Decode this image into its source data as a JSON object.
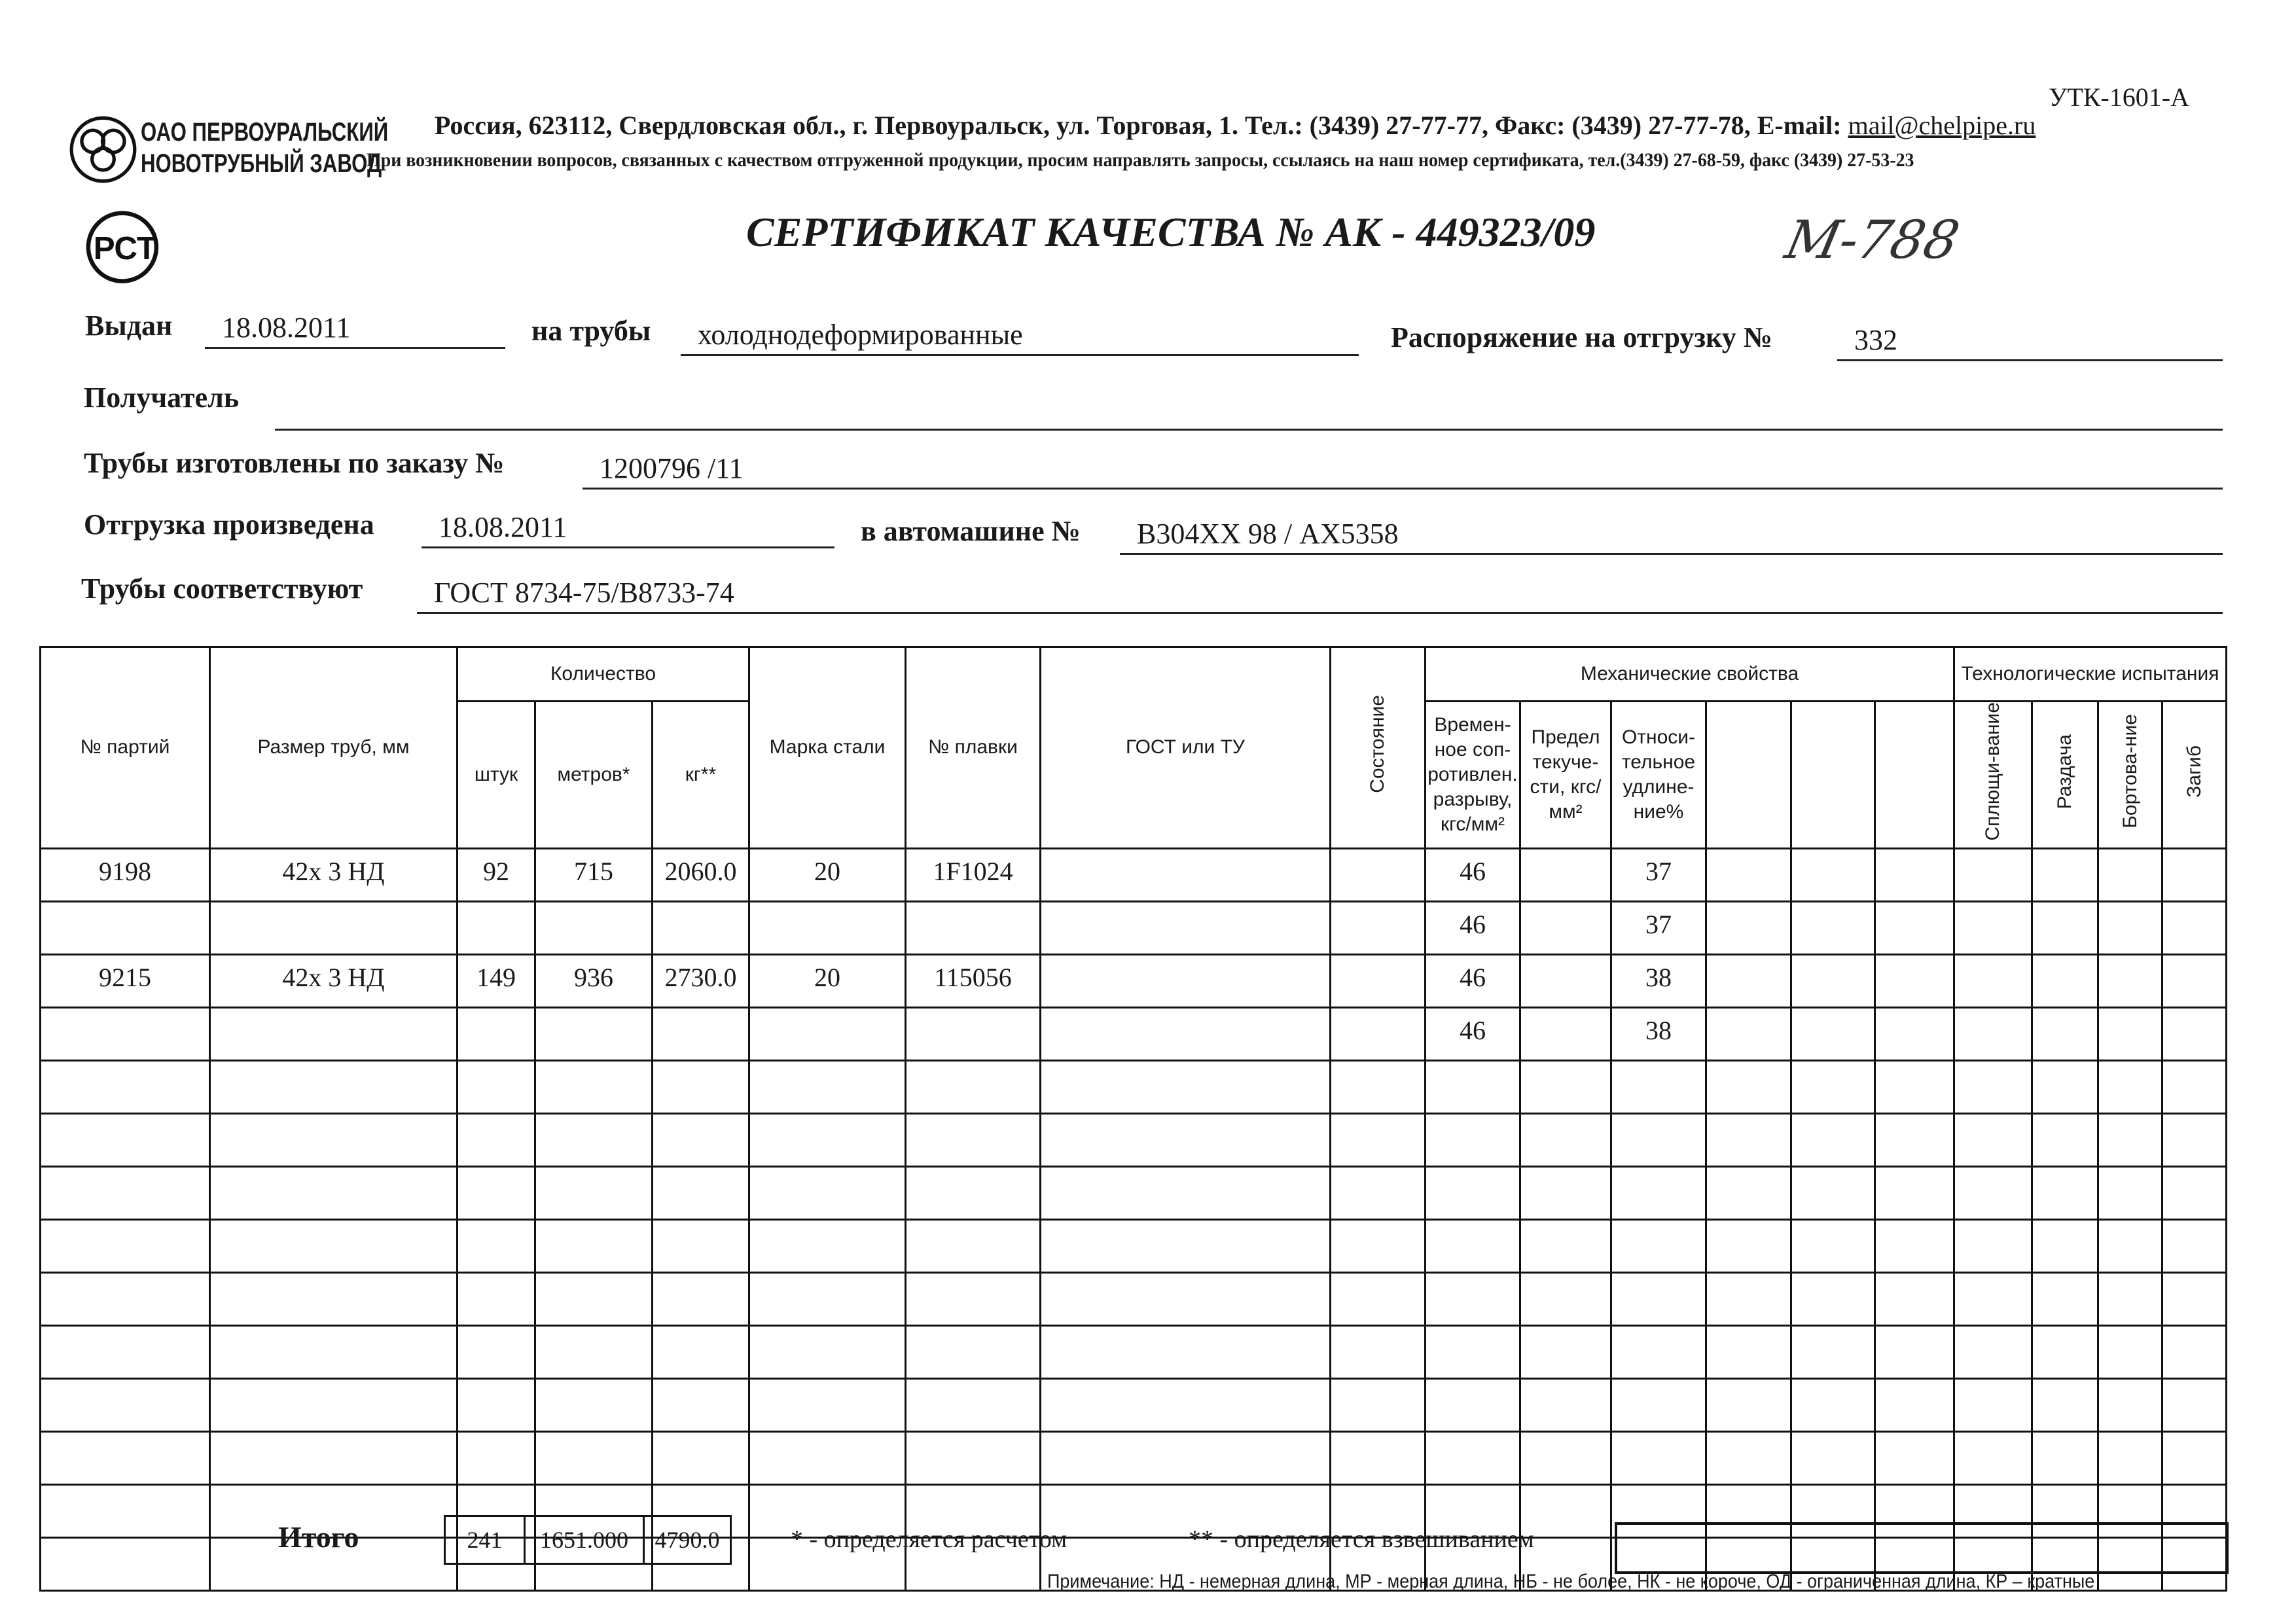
{
  "header": {
    "form_code": "УТК-1601-А",
    "company_line1": "ОАО ПЕРВОУРАЛЬСКИЙ",
    "company_line2": "НОВОТРУБНЫЙ ЗАВОД",
    "address": "Россия, 623112, Свердловская обл., г. Первоуральск, ул. Торговая, 1. Тел.: (3439) 27-77-77, Факс: (3439) 27-77-78,  E-mail: ",
    "email": "mail@chelpipe.ru",
    "inquiry_note": "При возникновении вопросов, связанных с качеством отгруженной продукции, просим направлять запросы, ссылаясь на наш номер сертификата, тел.(3439) 27-68-59, факс (3439) 27-53-23",
    "rst_mark": "РСТ",
    "title": "СЕРТИФИКАТ КАЧЕСТВА   №  АК -  449323/09",
    "handwritten_note": "М-788"
  },
  "form": {
    "issued_label": "Выдан",
    "issued_value": "18.08.2011",
    "pipes_label": "на трубы",
    "pipes_value": "холоднодеформированные",
    "order_label": "Распоряжение на отгрузку №",
    "order_value": "332",
    "recipient_label": "Получатель",
    "recipient_value": "",
    "made_by_order_label": "Трубы изготовлены по заказу №",
    "made_by_order_value": "1200796   /11",
    "shipped_label": "Отгрузка произведена",
    "shipped_value": "18.08.2011",
    "vehicle_label": "в автомашине №",
    "vehicle_value": "В304ХХ 98 / АХ5358",
    "conform_label": "Трубы соответствуют",
    "conform_value": "ГОСТ 8734-75/В8733-74"
  },
  "table": {
    "headers": {
      "batch": "№ партий",
      "size": "Размер труб, мм",
      "quantity": "Количество",
      "pcs": "штук",
      "meters": "метров*",
      "kg": "кг**",
      "steel": "Марка стали",
      "heat": "№ плавки",
      "gost": "ГОСТ или ТУ",
      "condition": "Состояние",
      "mech": "Механические свойства",
      "tensile": "Времен-ное соп-ротивлен. разрыву, кгс/мм²",
      "yield": "Предел текуче-сти, кгс/мм²",
      "elongation": "Относи-тельное удлине-ние%",
      "tech": "Технологические испытания",
      "flattening": "Сплющи-вание",
      "expansion": "Раздача",
      "flanging": "Бортова-ние",
      "bend": "Загиб"
    },
    "rows": [
      [
        "9198",
        "42х 3 НД",
        "92",
        "715",
        "2060.0",
        "20",
        "1F1024",
        "",
        "",
        "46",
        "",
        "37",
        "",
        "",
        "",
        "",
        "",
        "",
        ""
      ],
      [
        "",
        "",
        "",
        "",
        "",
        "",
        "",
        "",
        "",
        "46",
        "",
        "37",
        "",
        "",
        "",
        "",
        "",
        "",
        ""
      ],
      [
        "9215",
        "42х 3 НД",
        "149",
        "936",
        "2730.0",
        "20",
        "115056",
        "",
        "",
        "46",
        "",
        "38",
        "",
        "",
        "",
        "",
        "",
        "",
        ""
      ],
      [
        "",
        "",
        "",
        "",
        "",
        "",
        "",
        "",
        "",
        "46",
        "",
        "38",
        "",
        "",
        "",
        "",
        "",
        "",
        ""
      ],
      [
        "",
        "",
        "",
        "",
        "",
        "",
        "",
        "",
        "",
        "",
        "",
        "",
        "",
        "",
        "",
        "",
        "",
        "",
        ""
      ],
      [
        "",
        "",
        "",
        "",
        "",
        "",
        "",
        "",
        "",
        "",
        "",
        "",
        "",
        "",
        "",
        "",
        "",
        "",
        ""
      ],
      [
        "",
        "",
        "",
        "",
        "",
        "",
        "",
        "",
        "",
        "",
        "",
        "",
        "",
        "",
        "",
        "",
        "",
        "",
        ""
      ],
      [
        "",
        "",
        "",
        "",
        "",
        "",
        "",
        "",
        "",
        "",
        "",
        "",
        "",
        "",
        "",
        "",
        "",
        "",
        ""
      ],
      [
        "",
        "",
        "",
        "",
        "",
        "",
        "",
        "",
        "",
        "",
        "",
        "",
        "",
        "",
        "",
        "",
        "",
        "",
        ""
      ],
      [
        "",
        "",
        "",
        "",
        "",
        "",
        "",
        "",
        "",
        "",
        "",
        "",
        "",
        "",
        "",
        "",
        "",
        "",
        ""
      ],
      [
        "",
        "",
        "",
        "",
        "",
        "",
        "",
        "",
        "",
        "",
        "",
        "",
        "",
        "",
        "",
        "",
        "",
        "",
        ""
      ],
      [
        "",
        "",
        "",
        "",
        "",
        "",
        "",
        "",
        "",
        "",
        "",
        "",
        "",
        "",
        "",
        "",
        "",
        "",
        ""
      ],
      [
        "",
        "",
        "",
        "",
        "",
        "",
        "",
        "",
        "",
        "",
        "",
        "",
        "",
        "",
        "",
        "",
        "",
        "",
        ""
      ],
      [
        "",
        "",
        "",
        "",
        "",
        "",
        "",
        "",
        "",
        "",
        "",
        "",
        "",
        "",
        "",
        "",
        "",
        "",
        ""
      ]
    ]
  },
  "totals": {
    "label": "Итого",
    "pcs": "241",
    "meters": "1651.000",
    "kg": "4790.0"
  },
  "footnotes": {
    "calc": "* - определяется расчетом",
    "weigh": "** - определяется взвешиванием",
    "note": "Примечание: НД - немерная длина, МР - мерная длина, НБ - не более, НК - не короче, ОД - ограниченная длина, КР – кратные"
  }
}
